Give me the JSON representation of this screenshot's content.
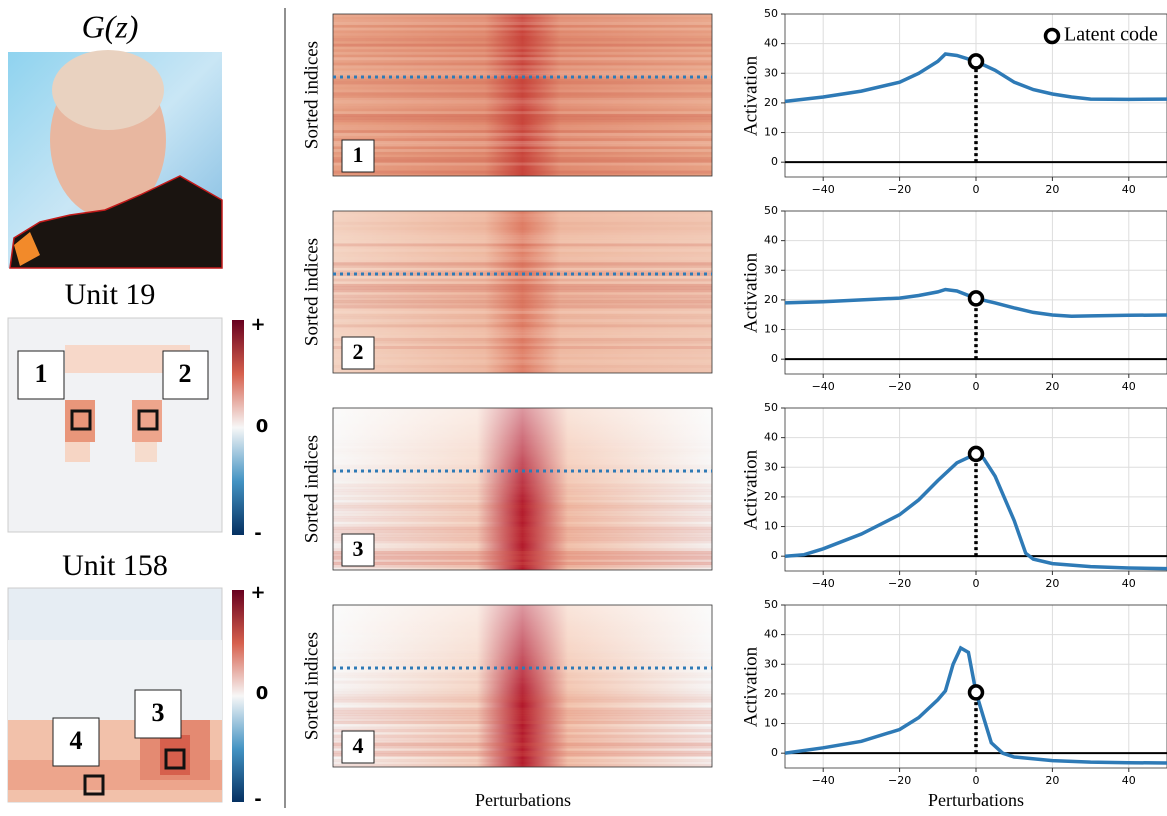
{
  "figure": {
    "generated_label": "G(z)",
    "units": [
      {
        "title": "Unit 19",
        "colorbar": [
          "+",
          "0",
          "-"
        ],
        "boxes": [
          "1",
          "2"
        ]
      },
      {
        "title": "Unit 158",
        "colorbar": [
          "+",
          "0",
          "-"
        ],
        "boxes": [
          "4",
          "3"
        ]
      }
    ],
    "heatmaps": [
      {
        "ylabel": "Sorted indices",
        "label": "1"
      },
      {
        "ylabel": "Sorted indices",
        "label": "2"
      },
      {
        "ylabel": "Sorted indices",
        "label": "3"
      },
      {
        "ylabel": "Sorted indices",
        "label": "4"
      }
    ],
    "heatmap_xlabel": "Perturbations"
  },
  "chart_data": [
    {
      "type": "line",
      "ylabel": "Activation",
      "color": "#2e7ab6",
      "x": [
        -50,
        -40,
        -30,
        -20,
        -15,
        -10,
        -8,
        -5,
        0,
        5,
        10,
        15,
        20,
        25,
        30,
        40,
        50
      ],
      "values": [
        20.5,
        22,
        24,
        27,
        30,
        34,
        36.5,
        36,
        34,
        31,
        27,
        24.5,
        23,
        22,
        21.3,
        21.2,
        21.3
      ],
      "xlim": [
        -50,
        50
      ],
      "ylim": [
        -5,
        50
      ],
      "xticks": [
        {
          "value": -40,
          "label": "−40"
        },
        {
          "value": -20,
          "label": "−20"
        },
        0,
        20,
        40
      ],
      "yticks": [
        0,
        10,
        20,
        30,
        40,
        50
      ],
      "grid": true,
      "hline": 0,
      "marker": {
        "name": "Latent code",
        "x": 0,
        "y": 34
      },
      "legend": "upper right"
    },
    {
      "type": "line",
      "ylabel": "Activation",
      "color": "#2e7ab6",
      "x": [
        -50,
        -40,
        -30,
        -20,
        -15,
        -10,
        -8,
        -5,
        0,
        5,
        10,
        15,
        20,
        25,
        30,
        40,
        50
      ],
      "values": [
        19,
        19.4,
        20,
        20.6,
        21.5,
        22.7,
        23.5,
        23,
        20.5,
        19,
        17.3,
        15.8,
        14.9,
        14.5,
        14.6,
        14.8,
        14.9
      ],
      "xlim": [
        -50,
        50
      ],
      "ylim": [
        -5,
        50
      ],
      "xticks": [
        {
          "value": -40,
          "label": "−40"
        },
        {
          "value": -20,
          "label": "−20"
        },
        0,
        20,
        40
      ],
      "yticks": [
        0,
        10,
        20,
        30,
        40,
        50
      ],
      "grid": true,
      "hline": 0,
      "marker": {
        "x": 0,
        "y": 20.5
      }
    },
    {
      "type": "line",
      "ylabel": "Activation",
      "color": "#2e7ab6",
      "x": [
        -50,
        -45,
        -40,
        -30,
        -20,
        -15,
        -10,
        -5,
        0,
        2,
        5,
        10,
        13,
        15,
        20,
        30,
        40,
        50
      ],
      "values": [
        0,
        0.5,
        2.5,
        7.5,
        14,
        19,
        25.5,
        31.5,
        34.5,
        33,
        27,
        12,
        1,
        -1,
        -2.5,
        -3.5,
        -4,
        -4.2
      ],
      "xlim": [
        -50,
        50
      ],
      "ylim": [
        -5,
        50
      ],
      "xticks": [
        {
          "value": -40,
          "label": "−40"
        },
        {
          "value": -20,
          "label": "−20"
        },
        0,
        20,
        40
      ],
      "yticks": [
        0,
        10,
        20,
        30,
        40,
        50
      ],
      "grid": true,
      "hline": 0,
      "marker": {
        "x": 0,
        "y": 34.5
      }
    },
    {
      "type": "line",
      "ylabel": "Activation",
      "xlabel": "Perturbations",
      "color": "#2e7ab6",
      "x": [
        -50,
        -40,
        -30,
        -20,
        -15,
        -10,
        -8,
        -6,
        -4,
        -2,
        0,
        2,
        4,
        7,
        10,
        20,
        30,
        40,
        50
      ],
      "values": [
        0,
        1.8,
        4,
        8,
        12,
        18,
        21,
        30,
        35.5,
        34,
        20.5,
        12,
        3.5,
        0,
        -1.3,
        -2.5,
        -3,
        -3.2,
        -3.3
      ],
      "xlim": [
        -50,
        50
      ],
      "ylim": [
        -5,
        50
      ],
      "xticks": [
        {
          "value": -40,
          "label": "−40"
        },
        {
          "value": -20,
          "label": "−20"
        },
        0,
        20,
        40
      ],
      "yticks": [
        0,
        10,
        20,
        30,
        40,
        50
      ],
      "grid": true,
      "hline": 0,
      "marker": {
        "x": 0,
        "y": 20.5
      }
    }
  ]
}
